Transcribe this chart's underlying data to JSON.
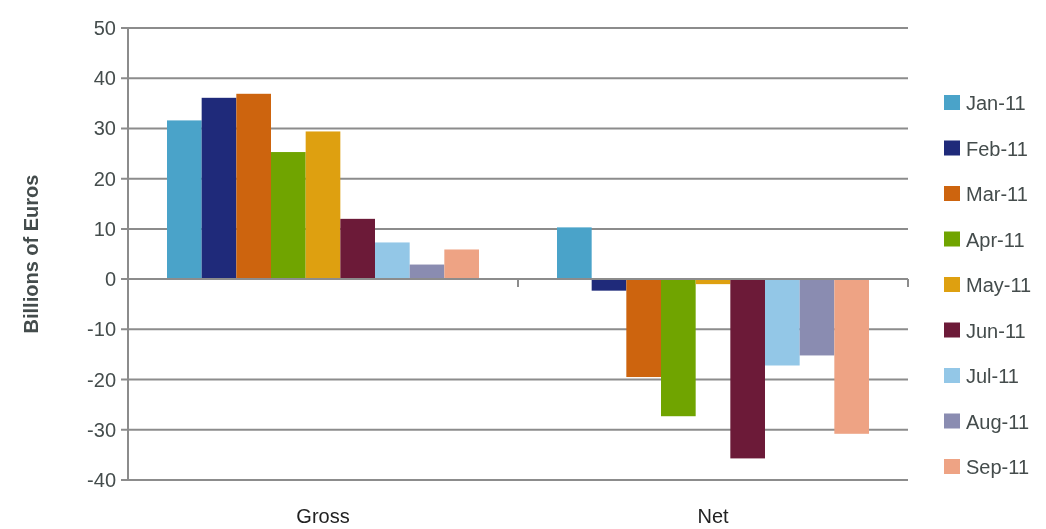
{
  "chart_data": {
    "type": "bar",
    "ylabel": "Billions of Euros",
    "categories": [
      "Gross",
      "Net"
    ],
    "series": [
      {
        "name": "Jan-11",
        "color": "#4aa3c9",
        "values": [
          31.6,
          10.3
        ]
      },
      {
        "name": "Feb-11",
        "color": "#1f2a7a",
        "values": [
          36.1,
          -2.3
        ]
      },
      {
        "name": "Mar-11",
        "color": "#cd640e",
        "values": [
          36.9,
          -19.5
        ]
      },
      {
        "name": "Apr-11",
        "color": "#70a400",
        "values": [
          25.3,
          -27.3
        ]
      },
      {
        "name": "May-11",
        "color": "#dea010",
        "values": [
          29.4,
          -1.0
        ]
      },
      {
        "name": "Jun-11",
        "color": "#6c1a38",
        "values": [
          12.0,
          -35.7
        ]
      },
      {
        "name": "Jul-11",
        "color": "#93c7e7",
        "values": [
          7.3,
          -17.2
        ]
      },
      {
        "name": "Aug-11",
        "color": "#8a8cb1",
        "values": [
          2.9,
          -15.2
        ]
      },
      {
        "name": "Sep-11",
        "color": "#eea384",
        "values": [
          5.9,
          -30.8
        ]
      }
    ],
    "ylim": [
      -40,
      50
    ],
    "yticks": [
      -40,
      -30,
      -20,
      -10,
      0,
      10,
      20,
      30,
      40,
      50
    ],
    "grid": "y",
    "legend": "right"
  }
}
